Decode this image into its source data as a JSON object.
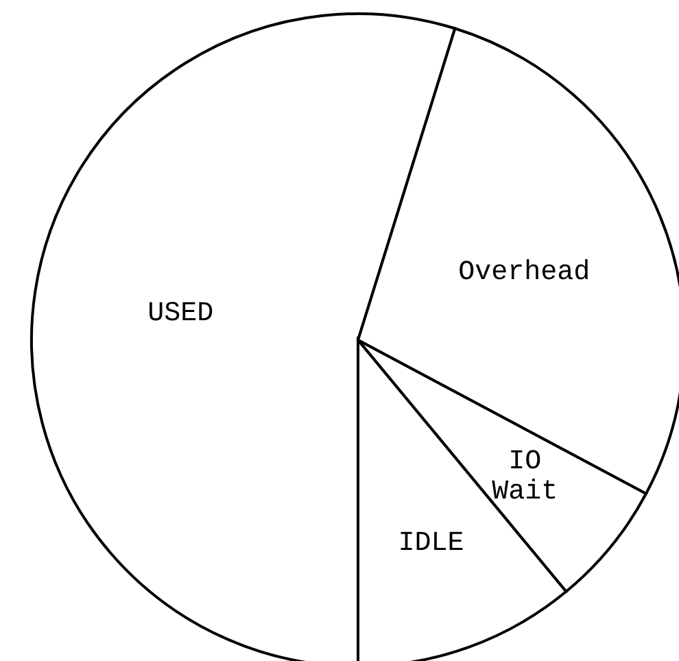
{
  "chart_data": {
    "type": "pie",
    "categories": [
      "USED",
      "Overhead",
      "IO Wait",
      "IDLE"
    ],
    "values": [
      54.8,
      28,
      6.2,
      11
    ],
    "colors": [
      "#ffffff",
      "#ffffff",
      "#ffffff",
      "#ffffff"
    ]
  }
}
